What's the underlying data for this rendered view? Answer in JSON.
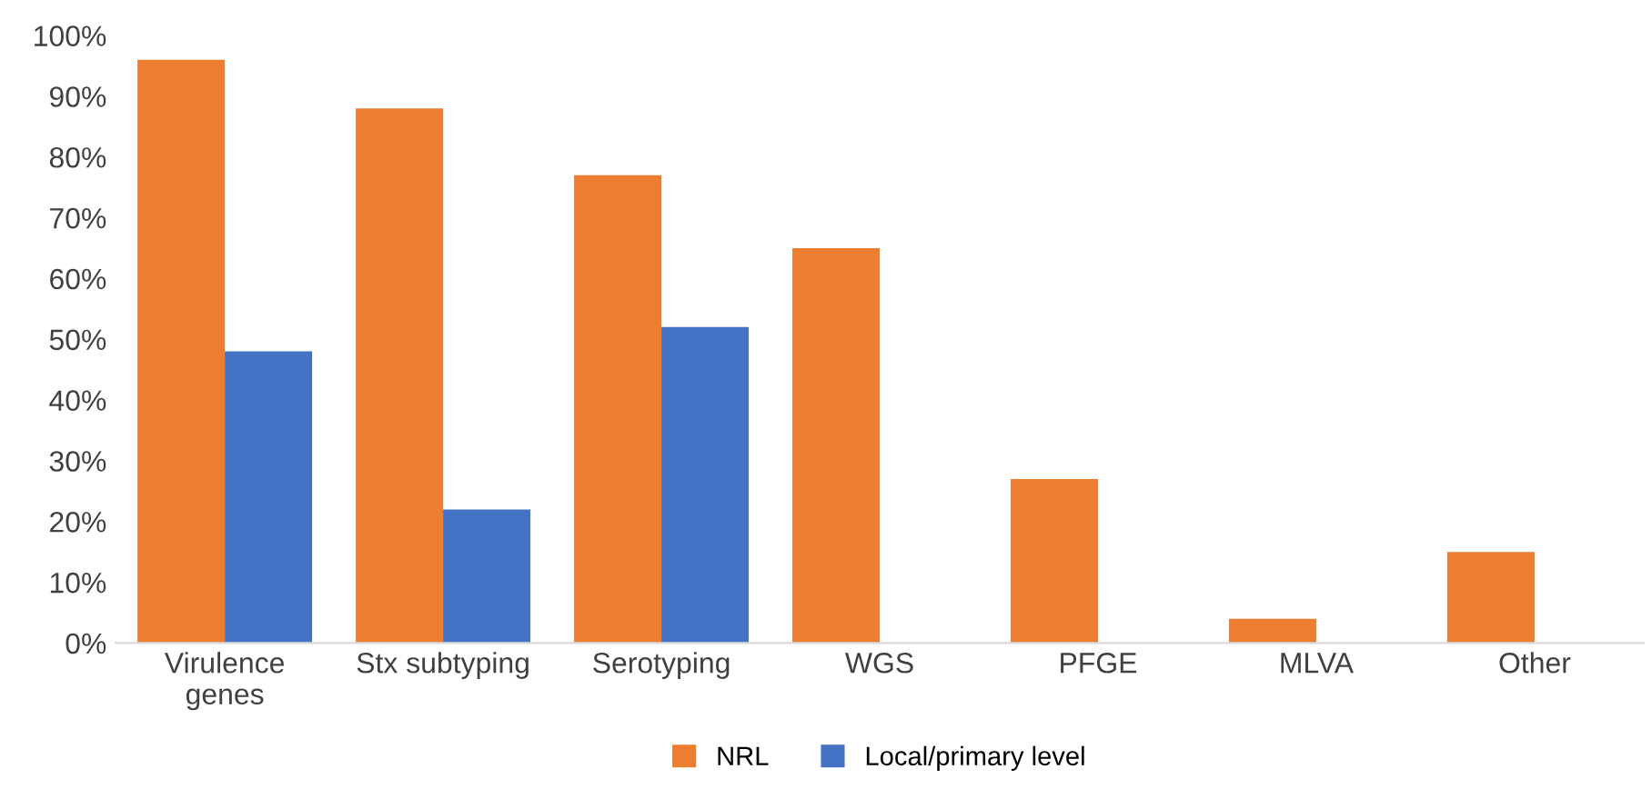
{
  "chart_data": {
    "type": "bar",
    "categories": [
      "Virulence\ngenes",
      "Stx subtyping",
      "Serotyping",
      "WGS",
      "PFGE",
      "MLVA",
      "Other"
    ],
    "series": [
      {
        "name": "NRL",
        "color": "#ed7d31",
        "values": [
          96,
          88,
          77,
          65,
          27,
          4,
          15
        ]
      },
      {
        "name": "Local/primary level",
        "color": "#4472c4",
        "values": [
          48,
          22,
          52,
          null,
          null,
          null,
          null
        ]
      }
    ],
    "ylim": [
      0,
      100
    ],
    "yticks": [
      {
        "value": 0,
        "label": "0%"
      },
      {
        "value": 10,
        "label": "10%"
      },
      {
        "value": 20,
        "label": "20%"
      },
      {
        "value": 30,
        "label": "30%"
      },
      {
        "value": 40,
        "label": "40%"
      },
      {
        "value": 50,
        "label": "50%"
      },
      {
        "value": 60,
        "label": "60%"
      },
      {
        "value": 70,
        "label": "70%"
      },
      {
        "value": 80,
        "label": "80%"
      },
      {
        "value": 90,
        "label": "90%"
      },
      {
        "value": 100,
        "label": "100%"
      }
    ],
    "grid": false,
    "legend": "bottom"
  }
}
